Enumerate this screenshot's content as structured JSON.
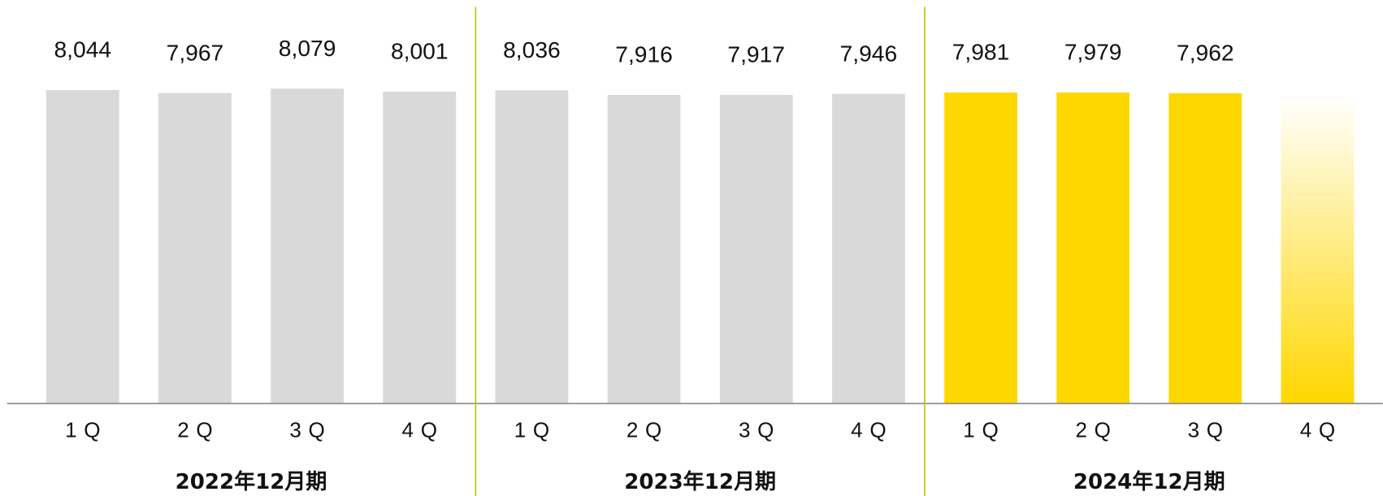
{
  "chart_data": {
    "type": "bar",
    "categories": [
      "1Q",
      "2Q",
      "3Q",
      "4Q",
      "1Q",
      "2Q",
      "3Q",
      "4Q",
      "1Q",
      "2Q",
      "3Q",
      "4Q"
    ],
    "values": [
      8044,
      7967,
      8079,
      8001,
      8036,
      7916,
      7917,
      7946,
      7981,
      7979,
      7962,
      7900
    ],
    "value_labels": [
      "8,044",
      "7,967",
      "8,079",
      "8,001",
      "8,036",
      "7,916",
      "7,917",
      "7,946",
      "7,981",
      "7,979",
      "7,962",
      null
    ],
    "colors": [
      "#d9d9d9",
      "#d9d9d9",
      "#d9d9d9",
      "#d9d9d9",
      "#d9d9d9",
      "#d9d9d9",
      "#d9d9d9",
      "#d9d9d9",
      "#ffd700",
      "#ffd700",
      "#ffd700",
      "#ffd700"
    ],
    "gradient_fill": [
      false,
      false,
      false,
      false,
      false,
      false,
      false,
      false,
      false,
      false,
      false,
      true
    ],
    "groups": [
      {
        "label": "2022年12月期",
        "size": 4
      },
      {
        "label": "2023年12月期",
        "size": 4
      },
      {
        "label": "2024年12月期",
        "size": 4
      }
    ],
    "separator_color": "#b8c400",
    "ylim": [
      0,
      8500
    ]
  }
}
